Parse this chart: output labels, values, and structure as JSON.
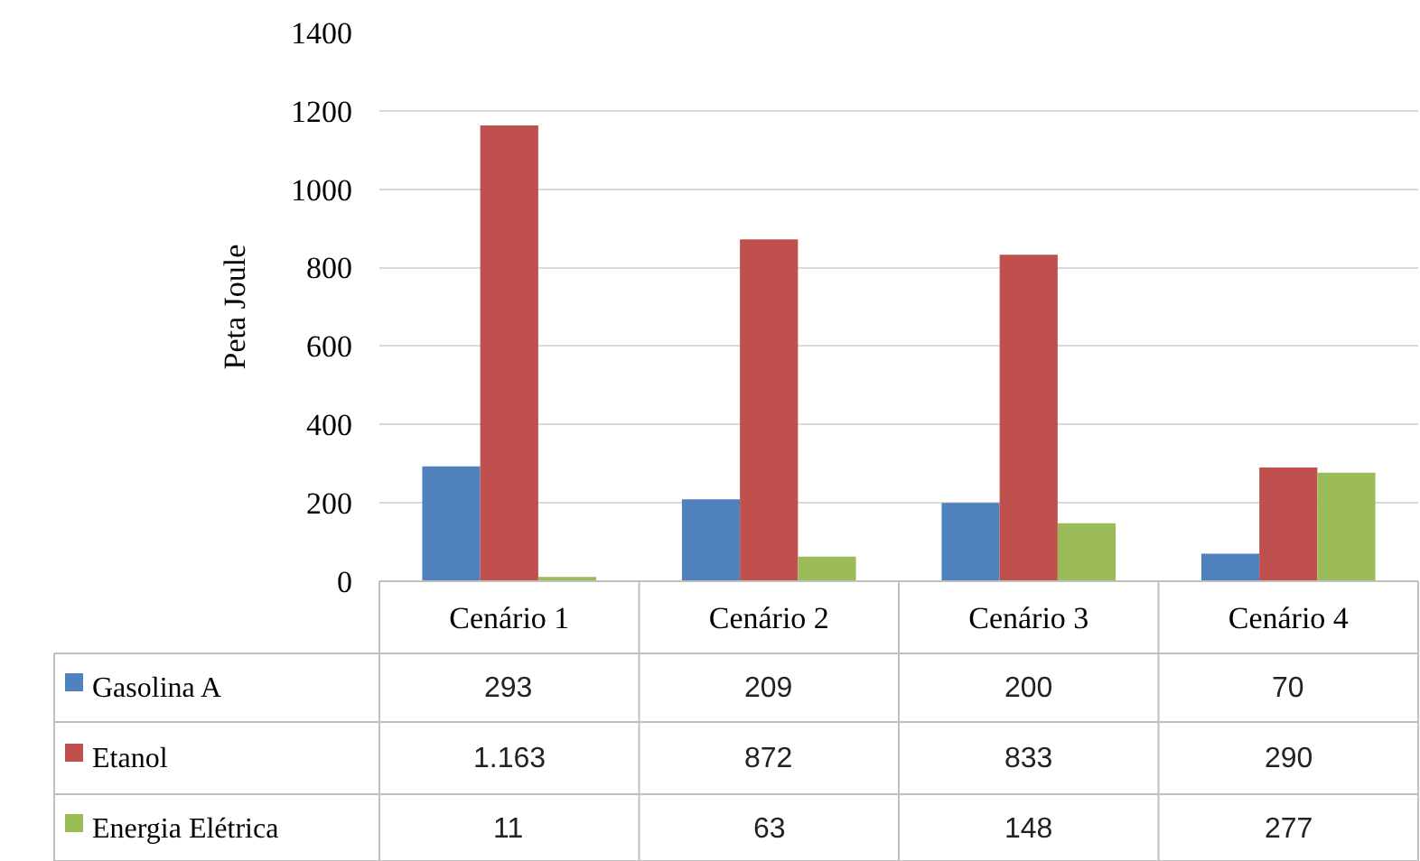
{
  "chart_data": {
    "type": "bar",
    "ylabel": "Peta Joule",
    "categories": [
      "Cenário 1",
      "Cenário 2",
      "Cenário 3",
      "Cenário 4"
    ],
    "series": [
      {
        "name": "Gasolina A",
        "color": "#4f81bd",
        "values": [
          293,
          209,
          200,
          70
        ],
        "value_labels": [
          "293",
          "209",
          "200",
          "70"
        ]
      },
      {
        "name": "Etanol",
        "color": "#c0504d",
        "values": [
          1163,
          872,
          833,
          290
        ],
        "value_labels": [
          "1.163",
          "872",
          "833",
          "290"
        ]
      },
      {
        "name": "Energia Elétrica",
        "color": "#9bbb59",
        "values": [
          11,
          63,
          148,
          277
        ],
        "value_labels": [
          "11",
          "63",
          "148",
          "277"
        ]
      }
    ],
    "ylim": [
      0,
      1400
    ],
    "yticks": [
      0,
      200,
      400,
      600,
      800,
      1000,
      1200,
      1400
    ],
    "grid": "y",
    "legend": "bottom"
  }
}
